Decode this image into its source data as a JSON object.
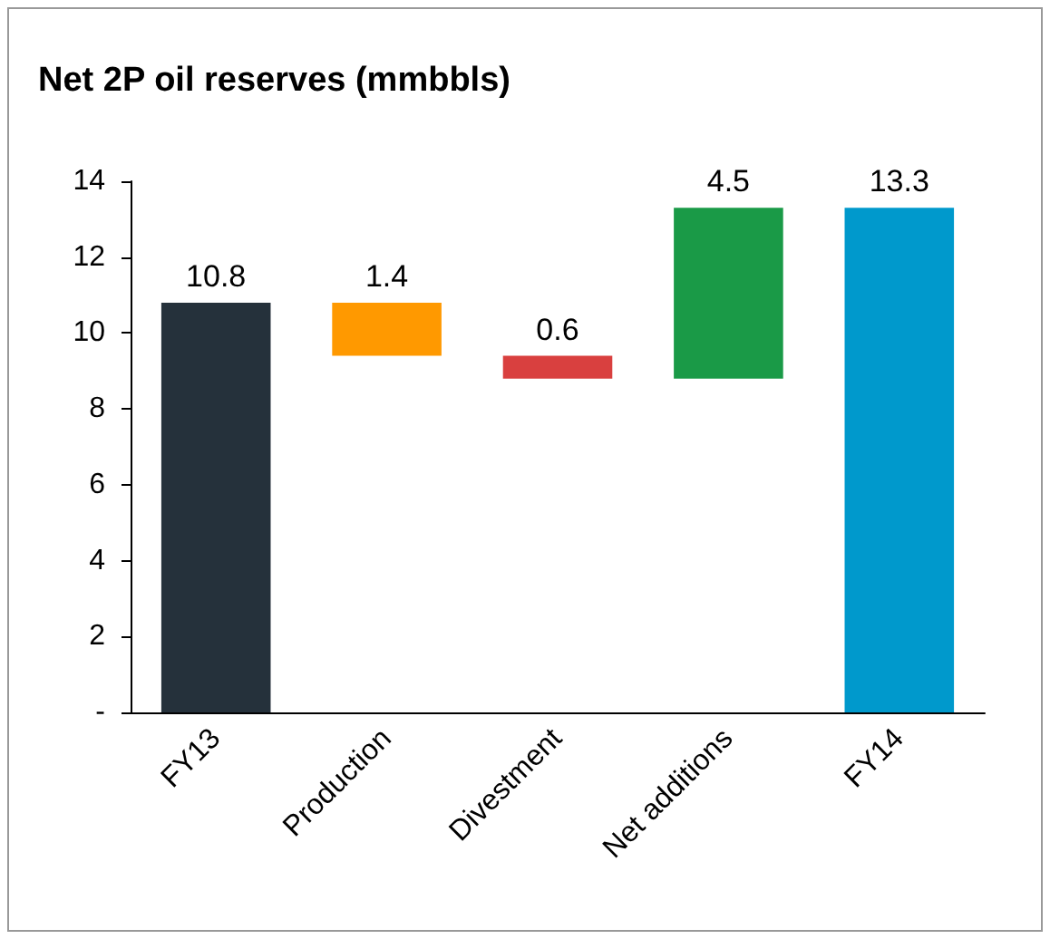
{
  "chart_data": {
    "type": "bar",
    "title": "Net 2P oil reserves (mmbbls)",
    "categories": [
      "FY13",
      "Production",
      "Divestment",
      "Net additions",
      "FY14"
    ],
    "values": [
      10.8,
      1.4,
      0.6,
      4.5,
      13.3
    ],
    "base": [
      0,
      9.4,
      8.8,
      8.8,
      0
    ],
    "colors": [
      "#25313b",
      "#ff9900",
      "#d9403f",
      "#1a9a47",
      "#0099cc"
    ],
    "ylim": [
      0,
      14
    ],
    "yticks": [
      {
        "value": 0,
        "label": "-"
      },
      2,
      4,
      6,
      8,
      10,
      12,
      14
    ],
    "data_labels": true,
    "grid": false
  }
}
